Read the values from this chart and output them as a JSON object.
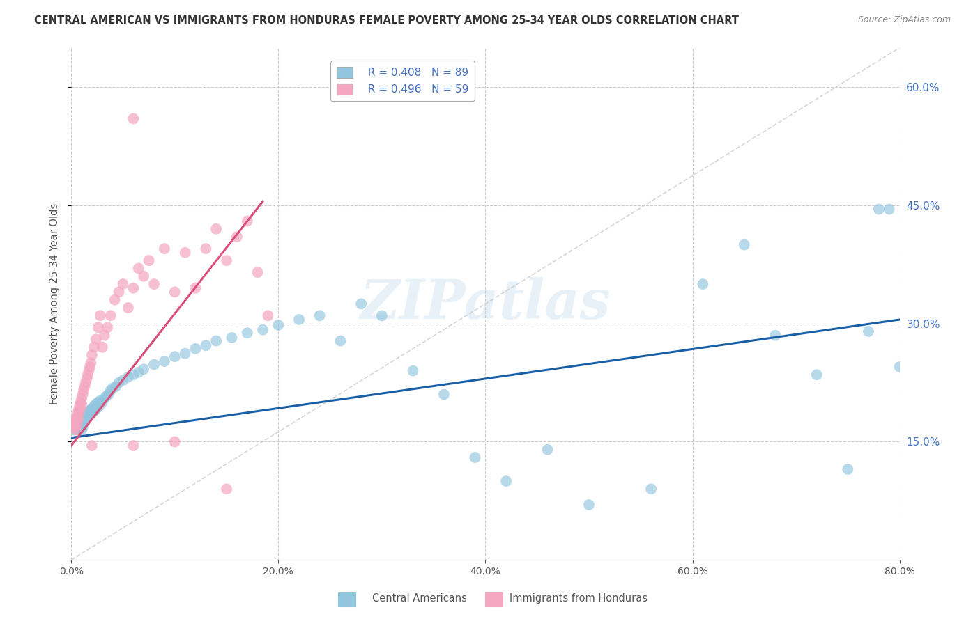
{
  "title": "CENTRAL AMERICAN VS IMMIGRANTS FROM HONDURAS FEMALE POVERTY AMONG 25-34 YEAR OLDS CORRELATION CHART",
  "source": "Source: ZipAtlas.com",
  "ylabel_label": "Female Poverty Among 25-34 Year Olds",
  "legend_r1": "R = 0.408",
  "legend_n1": "N = 89",
  "legend_r2": "R = 0.496",
  "legend_n2": "N = 59",
  "xmin": 0.0,
  "xmax": 0.8,
  "ymin": 0.0,
  "ymax": 0.65,
  "yticks": [
    0.15,
    0.3,
    0.45,
    0.6
  ],
  "xticks": [
    0.0,
    0.2,
    0.4,
    0.6,
    0.8
  ],
  "watermark": "ZIPatlas",
  "blue_color": "#92c5de",
  "pink_color": "#f4a6c0",
  "blue_line_color": "#1a5fa8",
  "pink_line_color": "#d94f7a",
  "diag_color": "#cccccc",
  "grid_color": "#cccccc",
  "blue_line_start_x": 0.0,
  "blue_line_end_x": 0.8,
  "blue_line_start_y": 0.155,
  "blue_line_end_y": 0.305,
  "pink_line_start_x": 0.0,
  "pink_line_end_x": 0.185,
  "pink_line_start_y": 0.145,
  "pink_line_end_y": 0.455,
  "blue_x": [
    0.002,
    0.003,
    0.004,
    0.004,
    0.005,
    0.005,
    0.005,
    0.006,
    0.006,
    0.006,
    0.007,
    0.007,
    0.007,
    0.008,
    0.008,
    0.008,
    0.009,
    0.009,
    0.01,
    0.01,
    0.01,
    0.011,
    0.011,
    0.012,
    0.012,
    0.013,
    0.013,
    0.014,
    0.014,
    0.015,
    0.015,
    0.016,
    0.017,
    0.018,
    0.019,
    0.02,
    0.021,
    0.022,
    0.023,
    0.024,
    0.025,
    0.026,
    0.027,
    0.028,
    0.03,
    0.032,
    0.034,
    0.036,
    0.038,
    0.04,
    0.043,
    0.046,
    0.05,
    0.055,
    0.06,
    0.065,
    0.07,
    0.08,
    0.09,
    0.1,
    0.11,
    0.12,
    0.13,
    0.14,
    0.155,
    0.17,
    0.185,
    0.2,
    0.22,
    0.24,
    0.26,
    0.28,
    0.3,
    0.33,
    0.36,
    0.39,
    0.42,
    0.46,
    0.5,
    0.56,
    0.61,
    0.65,
    0.68,
    0.72,
    0.75,
    0.77,
    0.78,
    0.79,
    0.8
  ],
  "blue_y": [
    0.165,
    0.17,
    0.175,
    0.168,
    0.172,
    0.178,
    0.165,
    0.17,
    0.175,
    0.168,
    0.172,
    0.178,
    0.165,
    0.17,
    0.175,
    0.168,
    0.172,
    0.178,
    0.165,
    0.17,
    0.175,
    0.168,
    0.172,
    0.178,
    0.18,
    0.175,
    0.183,
    0.178,
    0.185,
    0.18,
    0.188,
    0.183,
    0.188,
    0.19,
    0.185,
    0.192,
    0.188,
    0.195,
    0.19,
    0.198,
    0.193,
    0.2,
    0.195,
    0.202,
    0.2,
    0.205,
    0.208,
    0.21,
    0.215,
    0.218,
    0.22,
    0.225,
    0.228,
    0.232,
    0.235,
    0.238,
    0.242,
    0.248,
    0.252,
    0.258,
    0.262,
    0.268,
    0.272,
    0.278,
    0.282,
    0.288,
    0.292,
    0.298,
    0.305,
    0.31,
    0.278,
    0.325,
    0.31,
    0.24,
    0.21,
    0.13,
    0.1,
    0.14,
    0.07,
    0.09,
    0.35,
    0.4,
    0.285,
    0.235,
    0.115,
    0.29,
    0.445,
    0.445,
    0.245
  ],
  "pink_x": [
    0.002,
    0.003,
    0.004,
    0.004,
    0.005,
    0.005,
    0.006,
    0.006,
    0.007,
    0.007,
    0.008,
    0.008,
    0.009,
    0.009,
    0.01,
    0.01,
    0.011,
    0.012,
    0.013,
    0.014,
    0.015,
    0.016,
    0.017,
    0.018,
    0.019,
    0.02,
    0.022,
    0.024,
    0.026,
    0.028,
    0.03,
    0.032,
    0.035,
    0.038,
    0.042,
    0.046,
    0.05,
    0.055,
    0.06,
    0.065,
    0.07,
    0.075,
    0.08,
    0.09,
    0.1,
    0.11,
    0.12,
    0.13,
    0.14,
    0.15,
    0.16,
    0.17,
    0.18,
    0.19,
    0.02,
    0.06,
    0.1,
    0.15,
    0.06
  ],
  "pink_y": [
    0.168,
    0.172,
    0.178,
    0.165,
    0.17,
    0.18,
    0.175,
    0.185,
    0.19,
    0.18,
    0.195,
    0.188,
    0.2,
    0.193,
    0.205,
    0.198,
    0.21,
    0.215,
    0.22,
    0.225,
    0.23,
    0.235,
    0.24,
    0.245,
    0.25,
    0.26,
    0.27,
    0.28,
    0.295,
    0.31,
    0.27,
    0.285,
    0.295,
    0.31,
    0.33,
    0.34,
    0.35,
    0.32,
    0.345,
    0.37,
    0.36,
    0.38,
    0.35,
    0.395,
    0.34,
    0.39,
    0.345,
    0.395,
    0.42,
    0.38,
    0.41,
    0.43,
    0.365,
    0.31,
    0.145,
    0.145,
    0.15,
    0.09,
    0.56
  ]
}
